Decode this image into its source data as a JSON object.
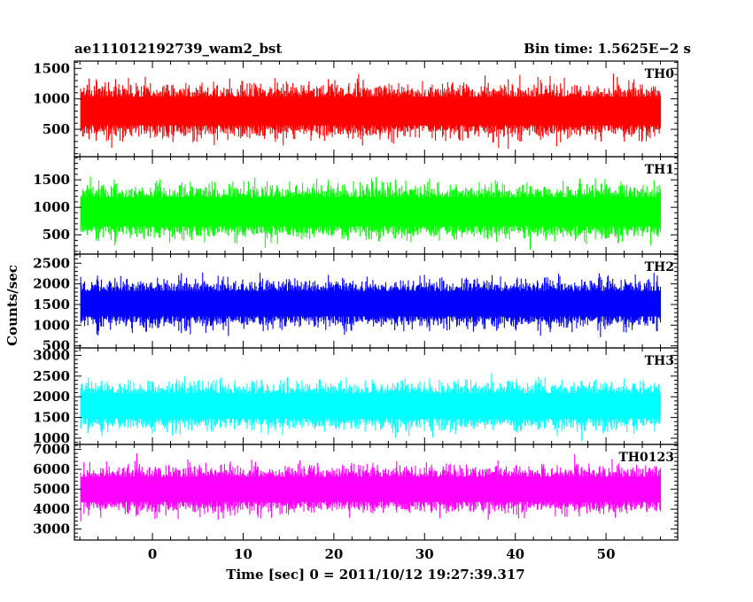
{
  "header": {
    "title": "ae111012192739_wam2_bst",
    "bin_time": "Bin time: 1.5625E−2 s"
  },
  "chart_data": {
    "type": "line",
    "xlabel": "Time [sec] 0 = 2011/10/12 19:27:39.317",
    "ylabel": "Counts/sec",
    "xlim": [
      -8.6,
      57.9
    ],
    "x_ticks": [
      0,
      10,
      20,
      30,
      40,
      50
    ],
    "x_tick_labels": [
      "0",
      "10",
      "20",
      "30",
      "40",
      "50"
    ],
    "x_data_range": [
      -7.9,
      56.0
    ],
    "panels": [
      {
        "name": "TH0",
        "label": "TH0",
        "color": "#ff0000",
        "ylim": [
          50,
          1620
        ],
        "y_ticks": [
          500,
          1000,
          1500
        ],
        "y_tick_labels": [
          "500",
          "1000",
          "1500"
        ],
        "mean": 800,
        "spread": 430
      },
      {
        "name": "TH1",
        "label": "TH1",
        "color": "#00ff00",
        "ylim": [
          150,
          1920
        ],
        "y_ticks": [
          500,
          1000,
          1500
        ],
        "y_tick_labels": [
          "500",
          "1000",
          "1500"
        ],
        "mean": 920,
        "spread": 480
      },
      {
        "name": "TH2",
        "label": "TH2",
        "color": "#0000ff",
        "ylim": [
          450,
          2720
        ],
        "y_ticks": [
          500,
          1000,
          1500,
          2000,
          2500
        ],
        "y_tick_labels": [
          "500",
          "1000",
          "1500",
          "2000",
          "2500"
        ],
        "mean": 1520,
        "spread": 560
      },
      {
        "name": "TH3",
        "label": "TH3",
        "color": "#00ffff",
        "ylim": [
          850,
          3180
        ],
        "y_ticks": [
          1000,
          1500,
          2000,
          2500,
          3000
        ],
        "y_tick_labels": [
          "1000",
          "1500",
          "2000",
          "2500",
          "3000"
        ],
        "mean": 1780,
        "spread": 560
      },
      {
        "name": "TH0123",
        "label": "TH0123",
        "color": "#ff00ff",
        "ylim": [
          2450,
          7250
        ],
        "y_ticks": [
          3000,
          4000,
          5000,
          6000,
          7000
        ],
        "y_tick_labels": [
          "3000",
          "4000",
          "5000",
          "6000",
          "7000"
        ],
        "mean": 5000,
        "spread": 1150
      }
    ],
    "grid": false,
    "legend": "none"
  }
}
